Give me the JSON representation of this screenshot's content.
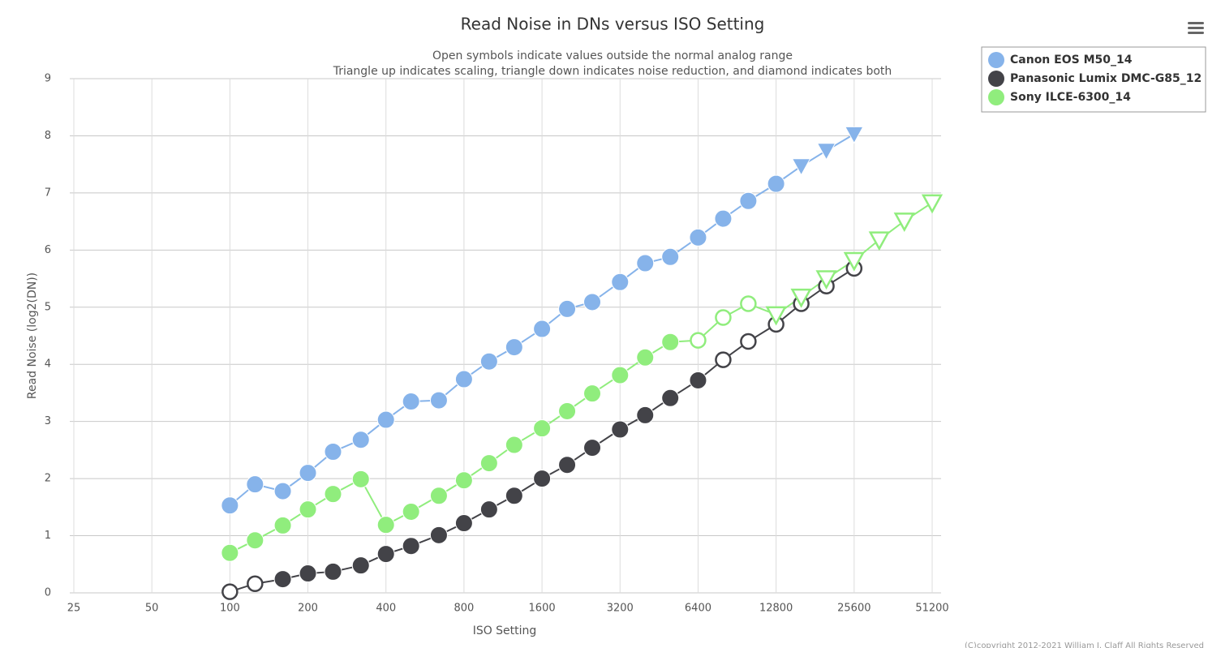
{
  "chart_data": {
    "type": "line",
    "title": "Read Noise in DNs versus ISO Setting",
    "subtitle": [
      "Open symbols indicate values outside the normal analog range",
      "Triangle up indicates scaling, triangle down indicates noise reduction, and diamond indicates both"
    ],
    "x_label": "ISO Setting",
    "y_label": "Read Noise (log2(DN))",
    "credits": "(C)copyright 2012-2021 William J. Claff All Rights Reserved",
    "x_log": true,
    "xlim": [
      25,
      51200
    ],
    "xticks": [
      25,
      50,
      100,
      200,
      400,
      800,
      1600,
      3200,
      6400,
      12800,
      25600,
      51200
    ],
    "ylim": [
      0,
      9
    ],
    "yticks": [
      0,
      1,
      2,
      3,
      4,
      5,
      6,
      7,
      8,
      9
    ],
    "grid": true,
    "legend": "top-right",
    "series": [
      {
        "name": "Canon EOS M50_14",
        "color": "#86b3ea",
        "x": [
          100,
          125,
          160,
          200,
          250,
          320,
          400,
          500,
          640,
          800,
          1000,
          1250,
          1600,
          2000,
          2500,
          3200,
          4000,
          5000,
          6400,
          8000,
          10000,
          12800,
          16000,
          20000,
          25600
        ],
        "values": [
          1.53,
          1.9,
          1.78,
          2.1,
          2.47,
          2.68,
          3.03,
          3.35,
          3.37,
          3.74,
          4.05,
          4.3,
          4.62,
          4.97,
          5.09,
          5.44,
          5.77,
          5.88,
          6.22,
          6.55,
          6.86,
          7.16,
          7.47,
          7.74,
          8.03
        ],
        "symbols": [
          "circle",
          "circle",
          "circle",
          "circle",
          "circle",
          "circle",
          "circle",
          "circle",
          "circle",
          "circle",
          "circle",
          "circle",
          "circle",
          "circle",
          "circle",
          "circle",
          "circle",
          "circle",
          "circle",
          "circle",
          "circle",
          "circle",
          "triangle-down",
          "triangle-down",
          "triangle-down"
        ]
      },
      {
        "name": "Panasonic Lumix DMC-G85_12",
        "color": "#434348",
        "x": [
          100,
          125,
          160,
          200,
          250,
          320,
          400,
          500,
          640,
          800,
          1000,
          1250,
          1600,
          2000,
          2500,
          3200,
          4000,
          5000,
          6400,
          8000,
          10000,
          12800,
          16000,
          20000,
          25600
        ],
        "values": [
          0.02,
          0.16,
          0.24,
          0.34,
          0.37,
          0.48,
          0.68,
          0.82,
          1.01,
          1.22,
          1.46,
          1.7,
          2.0,
          2.24,
          2.54,
          2.86,
          3.11,
          3.41,
          3.72,
          4.08,
          4.4,
          4.7,
          5.06,
          5.37,
          5.68
        ],
        "symbols": [
          "circle-open",
          "circle-open",
          "circle",
          "circle",
          "circle",
          "circle",
          "circle",
          "circle",
          "circle",
          "circle",
          "circle",
          "circle",
          "circle",
          "circle",
          "circle",
          "circle",
          "circle",
          "circle",
          "circle",
          "circle-open",
          "circle-open",
          "circle-open",
          "circle-open",
          "circle-open",
          "circle-open"
        ]
      },
      {
        "name": "Sony ILCE-6300_14",
        "color": "#90ed7d",
        "x": [
          100,
          125,
          160,
          200,
          250,
          320,
          400,
          500,
          640,
          800,
          1000,
          1250,
          1600,
          2000,
          2500,
          3200,
          4000,
          5000,
          6400,
          8000,
          10000,
          12800,
          16000,
          20000,
          25600,
          32000,
          40000,
          51200
        ],
        "values": [
          0.7,
          0.92,
          1.18,
          1.46,
          1.73,
          1.99,
          1.19,
          1.42,
          1.7,
          1.97,
          2.27,
          2.59,
          2.88,
          3.18,
          3.49,
          3.81,
          4.12,
          4.39,
          4.42,
          4.82,
          5.06,
          4.87,
          5.18,
          5.5,
          5.82,
          6.18,
          6.51,
          6.83
        ],
        "symbols": [
          "circle",
          "circle",
          "circle",
          "circle",
          "circle",
          "circle",
          "circle",
          "circle",
          "circle",
          "circle",
          "circle",
          "circle",
          "circle",
          "circle",
          "circle",
          "circle",
          "circle",
          "circle",
          "circle-open",
          "circle-open",
          "circle-open",
          "triangle-down-open",
          "triangle-down-open",
          "triangle-down-open",
          "triangle-down-open",
          "triangle-down-open",
          "triangle-down-open",
          "triangle-down-open"
        ]
      }
    ]
  }
}
